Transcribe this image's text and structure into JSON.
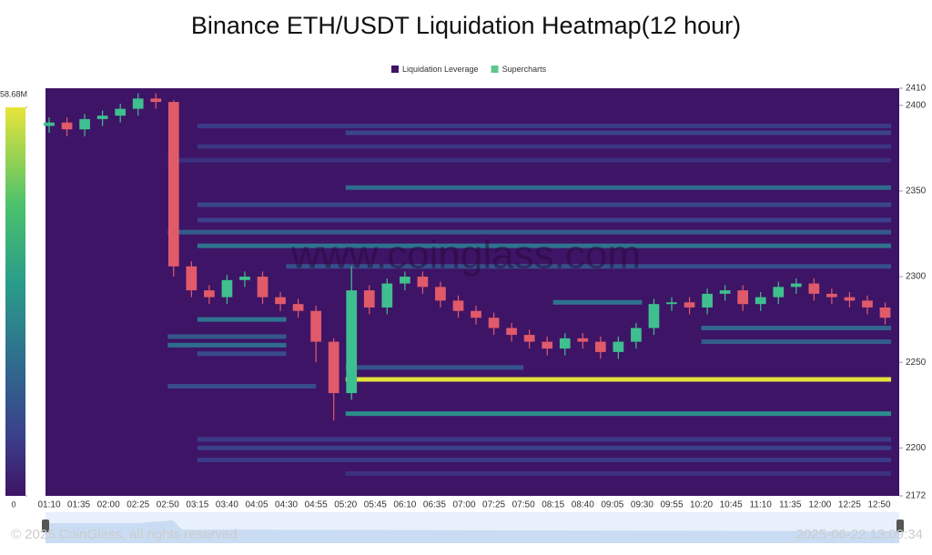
{
  "chart_data": {
    "type": "liquidation-heatmap",
    "title": "Binance ETH/USDT Liquidation Heatmap(12 hour)",
    "watermark": "www.coinglass.com",
    "footer_left": "© 2025 CoinGlass, all rights reserved",
    "footer_right": "2025-06-22 13:09:34",
    "ylim": [
      2172,
      2410
    ],
    "yticks": [
      2172,
      2200,
      2250,
      2300,
      2350,
      2400,
      2410
    ],
    "xticks": [
      "01:10",
      "01:35",
      "02:00",
      "02:25",
      "02:50",
      "03:15",
      "03:40",
      "04:05",
      "04:30",
      "04:55",
      "05:20",
      "05:45",
      "06:10",
      "06:35",
      "07:00",
      "07:25",
      "07:50",
      "08:15",
      "08:40",
      "09:05",
      "09:30",
      "09:55",
      "10:20",
      "10:45",
      "11:10",
      "11:35",
      "12:00",
      "12:25",
      "12:50"
    ],
    "colorbar_ticks": [
      0,
      {
        "value": 58.68,
        "label": "58.68M"
      }
    ],
    "heatmap": {
      "name": "Liquidation Leverage",
      "color": "#3e1466",
      "levels": [
        {
          "price": 2388,
          "start": "03:15",
          "end": "13:00",
          "intensity": 8
        },
        {
          "price": 2384,
          "start": "05:20",
          "end": "13:00",
          "intensity": 10
        },
        {
          "price": 2376,
          "start": "03:15",
          "end": "13:00",
          "intensity": 7
        },
        {
          "price": 2368,
          "start": "02:50",
          "end": "13:00",
          "intensity": 6
        },
        {
          "price": 2352,
          "start": "05:20",
          "end": "13:00",
          "intensity": 20
        },
        {
          "price": 2342,
          "start": "03:15",
          "end": "13:00",
          "intensity": 11
        },
        {
          "price": 2333,
          "start": "03:15",
          "end": "13:00",
          "intensity": 9
        },
        {
          "price": 2326,
          "start": "02:50",
          "end": "13:00",
          "intensity": 16
        },
        {
          "price": 2318,
          "start": "03:15",
          "end": "13:00",
          "intensity": 22
        },
        {
          "price": 2306,
          "start": "04:30",
          "end": "13:00",
          "intensity": 13
        },
        {
          "price": 2285,
          "start": "08:15",
          "end": "09:30",
          "intensity": 22
        },
        {
          "price": 2275,
          "start": "03:15",
          "end": "04:30",
          "intensity": 22
        },
        {
          "price": 2270,
          "start": "10:20",
          "end": "13:00",
          "intensity": 18
        },
        {
          "price": 2265,
          "start": "02:50",
          "end": "04:30",
          "intensity": 15
        },
        {
          "price": 2262,
          "start": "10:20",
          "end": "13:00",
          "intensity": 16
        },
        {
          "price": 2260,
          "start": "02:50",
          "end": "04:30",
          "intensity": 20
        },
        {
          "price": 2255,
          "start": "03:15",
          "end": "04:30",
          "intensity": 12
        },
        {
          "price": 2247,
          "start": "05:20",
          "end": "07:50",
          "intensity": 14
        },
        {
          "price": 2240,
          "start": "05:20",
          "end": "13:00",
          "intensity": 58
        },
        {
          "price": 2236,
          "start": "02:50",
          "end": "04:55",
          "intensity": 12
        },
        {
          "price": 2220,
          "start": "05:20",
          "end": "13:00",
          "intensity": 28
        },
        {
          "price": 2205,
          "start": "03:15",
          "end": "13:00",
          "intensity": 8
        },
        {
          "price": 2200,
          "start": "03:15",
          "end": "13:00",
          "intensity": 9
        },
        {
          "price": 2193,
          "start": "03:15",
          "end": "13:00",
          "intensity": 8
        },
        {
          "price": 2185,
          "start": "05:20",
          "end": "13:00",
          "intensity": 6
        }
      ]
    },
    "candles": {
      "name": "Supercharts",
      "color": "#5bc98a",
      "up_color": "#3fbf8f",
      "down_color": "#e05a6a",
      "x": [
        "01:10",
        "01:25",
        "01:40",
        "01:55",
        "02:10",
        "02:25",
        "02:40",
        "02:55",
        "03:10",
        "03:25",
        "03:40",
        "03:55",
        "04:10",
        "04:25",
        "04:40",
        "04:55",
        "05:10",
        "05:25",
        "05:40",
        "05:55",
        "06:10",
        "06:25",
        "06:40",
        "06:55",
        "07:10",
        "07:25",
        "07:40",
        "07:55",
        "08:10",
        "08:25",
        "08:40",
        "08:55",
        "09:10",
        "09:25",
        "09:40",
        "09:55",
        "10:10",
        "10:25",
        "10:40",
        "10:55",
        "11:10",
        "11:25",
        "11:40",
        "11:55",
        "12:10",
        "12:25",
        "12:40",
        "12:55"
      ],
      "open": [
        2388,
        2390,
        2386,
        2392,
        2394,
        2398,
        2404,
        2402,
        2306,
        2292,
        2288,
        2298,
        2300,
        2288,
        2284,
        2280,
        2262,
        2232,
        2292,
        2282,
        2296,
        2300,
        2294,
        2286,
        2280,
        2276,
        2270,
        2266,
        2262,
        2258,
        2264,
        2262,
        2256,
        2262,
        2270,
        2284,
        2285,
        2282,
        2290,
        2292,
        2284,
        2288,
        2294,
        2296,
        2290,
        2288,
        2286,
        2282
      ],
      "high": [
        2393,
        2393,
        2395,
        2397,
        2401,
        2407,
        2407,
        2403,
        2309,
        2295,
        2301,
        2303,
        2303,
        2291,
        2287,
        2283,
        2264,
        2306,
        2295,
        2299,
        2303,
        2303,
        2297,
        2289,
        2283,
        2279,
        2273,
        2269,
        2265,
        2267,
        2267,
        2265,
        2265,
        2273,
        2287,
        2288,
        2288,
        2293,
        2295,
        2295,
        2291,
        2297,
        2299,
        2299,
        2293,
        2291,
        2289,
        2285
      ],
      "low": [
        2384,
        2382,
        2382,
        2388,
        2390,
        2394,
        2398,
        2300,
        2288,
        2284,
        2284,
        2294,
        2284,
        2280,
        2276,
        2250,
        2216,
        2228,
        2278,
        2278,
        2292,
        2290,
        2282,
        2276,
        2272,
        2266,
        2262,
        2258,
        2254,
        2254,
        2258,
        2252,
        2252,
        2258,
        2266,
        2280,
        2278,
        2278,
        2286,
        2280,
        2280,
        2284,
        2290,
        2286,
        2284,
        2282,
        2278,
        2272
      ],
      "close": [
        2390,
        2386,
        2392,
        2394,
        2398,
        2404,
        2402,
        2306,
        2292,
        2288,
        2298,
        2300,
        2288,
        2284,
        2280,
        2262,
        2232,
        2292,
        2282,
        2296,
        2300,
        2294,
        2286,
        2280,
        2276,
        2270,
        2266,
        2262,
        2258,
        2264,
        2262,
        2256,
        2262,
        2270,
        2284,
        2285,
        2282,
        2290,
        2292,
        2284,
        2288,
        2294,
        2296,
        2290,
        2288,
        2286,
        2282,
        2276
      ]
    }
  }
}
